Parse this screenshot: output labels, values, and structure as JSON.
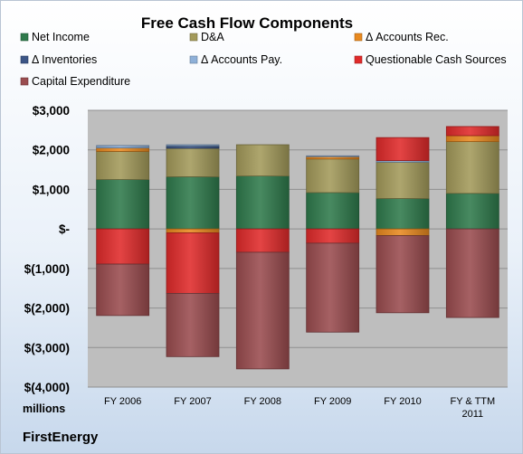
{
  "company": "FirstEnergy",
  "chart_data": {
    "type": "bar",
    "stacked": true,
    "title": "Free Cash Flow Components",
    "unit_label": "millions",
    "categories": [
      "FY 2006",
      "FY 2007",
      "FY 2008",
      "FY 2009",
      "FY 2010",
      "FY & TTM 2011"
    ],
    "ylim": [
      -4000,
      3000
    ],
    "yticks": [
      {
        "value": 3000,
        "label": "$3,000"
      },
      {
        "value": 2000,
        "label": "$2,000"
      },
      {
        "value": 1000,
        "label": "$1,000"
      },
      {
        "value": 0,
        "label": "$-"
      },
      {
        "value": -1000,
        "label": "$(1,000)"
      },
      {
        "value": -2000,
        "label": "$(2,000)"
      },
      {
        "value": -3000,
        "label": "$(3,000)"
      },
      {
        "value": -4000,
        "label": "$(4,000)"
      }
    ],
    "grid": true,
    "legend_position": "top",
    "series": [
      {
        "name": "Net Income",
        "color": "#2f7a4c",
        "values": [
          1250,
          1320,
          1340,
          920,
          770,
          900
        ]
      },
      {
        "name": "D&A",
        "color": "#a39a5a",
        "values": [
          710,
          720,
          790,
          850,
          920,
          1310
        ]
      },
      {
        "name": "Δ Accounts Rec.",
        "color": "#e8891f",
        "values": [
          90,
          -100,
          0,
          60,
          -170,
          150
        ]
      },
      {
        "name": "Δ Inventories",
        "color": "#3b5586",
        "values": [
          0,
          60,
          0,
          0,
          0,
          0
        ]
      },
      {
        "name": "Δ Accounts Pay.",
        "color": "#8eb0d8",
        "values": [
          60,
          30,
          0,
          20,
          40,
          0
        ]
      },
      {
        "name": "Questionable Cash Sources",
        "color": "#e02a2a",
        "values": [
          -890,
          -1530,
          -590,
          -360,
          580,
          230
        ]
      },
      {
        "name": "Capital Expenditure",
        "color": "#9a4c4f",
        "values": [
          -1300,
          -1600,
          -2950,
          -2250,
          -1950,
          -2240
        ]
      }
    ]
  }
}
